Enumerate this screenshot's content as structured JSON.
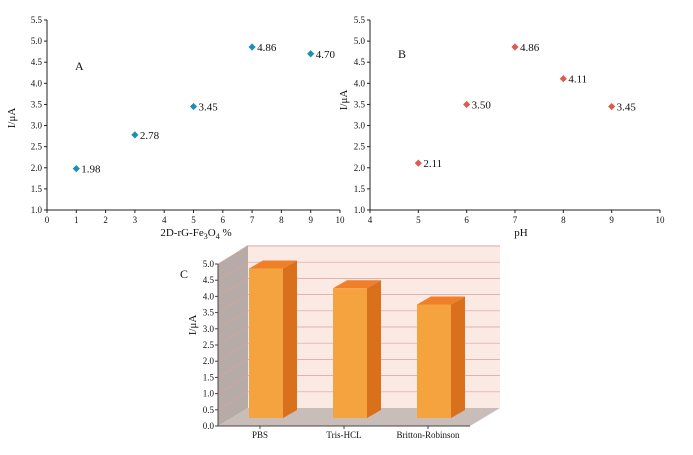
{
  "colors": {
    "panel_a_marker": "#1b8fb5",
    "panel_b_marker": "#e05a4e",
    "bar_front": "#f5a33e",
    "bar_top": "#f07f2a",
    "bar_side": "#d9711c",
    "back_wall": "#fbe9e3",
    "side_wall": "#b7aba8",
    "floor": "#c9bdb9",
    "grid": "#d9a39a"
  },
  "chart_data": [
    {
      "type": "scatter",
      "panel_label": "A",
      "xlabel_prefix": "2D-rG-Fe",
      "xlabel_sub": "3",
      "xlabel_mid": "O",
      "xlabel_sub2": "4",
      "xlabel_suffix": " %",
      "ylabel": "I/μA",
      "xlim": [
        0,
        10
      ],
      "ylim": [
        1.0,
        5.5
      ],
      "xticks": [
        "0",
        "1",
        "2",
        "3",
        "4",
        "5",
        "6",
        "7",
        "8",
        "9",
        "10"
      ],
      "yticks": [
        "1.0",
        "1.5",
        "2.0",
        "2.5",
        "3.0",
        "3.5",
        "4.0",
        "4.5",
        "5.0",
        "5.5"
      ],
      "points": [
        {
          "x": 1,
          "y": 1.98,
          "label": "1.98"
        },
        {
          "x": 3,
          "y": 2.78,
          "label": "2.78"
        },
        {
          "x": 5,
          "y": 3.45,
          "label": "3.45"
        },
        {
          "x": 7,
          "y": 4.86,
          "label": "4.86"
        },
        {
          "x": 9,
          "y": 4.7,
          "label": "4.70"
        }
      ]
    },
    {
      "type": "scatter",
      "panel_label": "B",
      "xlabel": "pH",
      "ylabel": "I/μA",
      "xlim": [
        4,
        10
      ],
      "ylim": [
        1.0,
        5.5
      ],
      "xticks": [
        "4",
        "5",
        "6",
        "7",
        "8",
        "9",
        "10"
      ],
      "yticks": [
        "1.0",
        "1.5",
        "2.0",
        "2.5",
        "3.0",
        "3.5",
        "4.0",
        "4.5",
        "5.0",
        "5.5"
      ],
      "points": [
        {
          "x": 5,
          "y": 2.11,
          "label": "2.11"
        },
        {
          "x": 6,
          "y": 3.5,
          "label": "3.50"
        },
        {
          "x": 7,
          "y": 4.86,
          "label": "4.86"
        },
        {
          "x": 8,
          "y": 4.11,
          "label": "4.11"
        },
        {
          "x": 9,
          "y": 3.45,
          "label": "3.45"
        }
      ]
    },
    {
      "type": "bar",
      "panel_label": "C",
      "ylabel": "I/μA",
      "ylim": [
        0.0,
        5.0
      ],
      "yticks": [
        "0.0",
        "0.5",
        "1.0",
        "1.5",
        "2.0",
        "2.5",
        "3.0",
        "3.5",
        "4.0",
        "4.5",
        "5.0"
      ],
      "categories": [
        "PBS",
        "Tris-HCL",
        "Britton-Robinson"
      ],
      "values": [
        4.86,
        4.25,
        3.75
      ]
    }
  ]
}
